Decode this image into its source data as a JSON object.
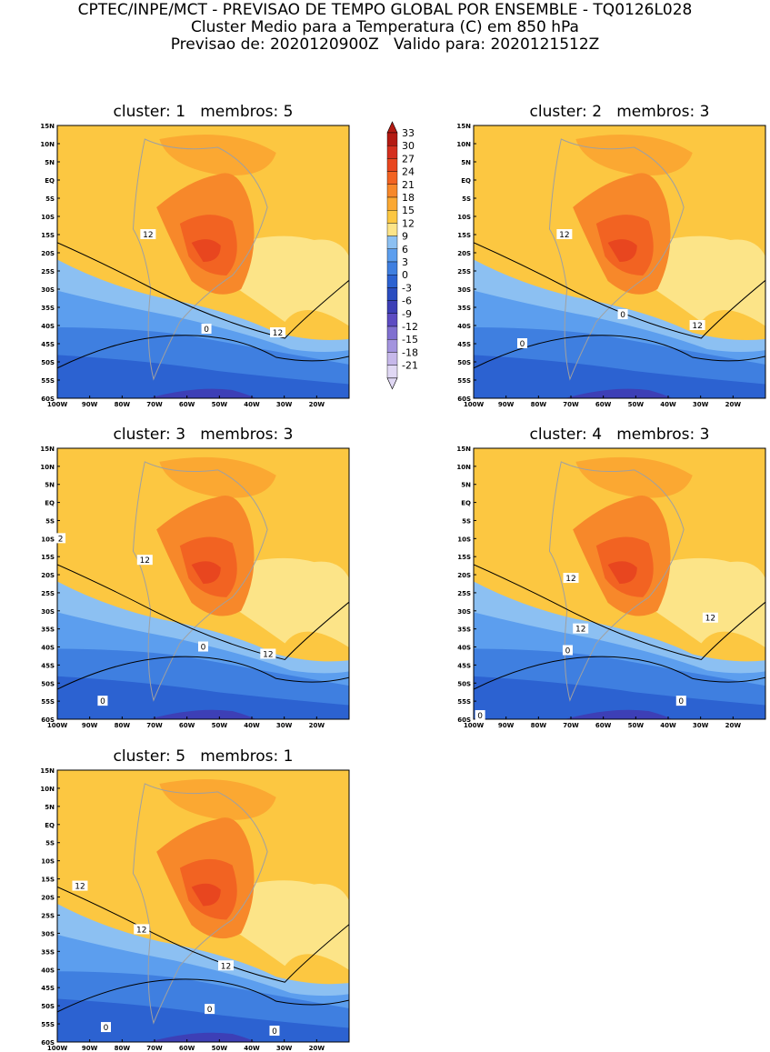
{
  "header": {
    "line1": "CPTEC/INPE/MCT - PREVISAO DE TEMPO GLOBAL POR ENSEMBLE - TQ0126L028",
    "line2": "Cluster Medio para a Temperatura (C) em 850 hPa",
    "line3": "Previsao de: 2020120900Z   Valido para: 2020121512Z"
  },
  "lat_labels": [
    "15N",
    "10N",
    "5N",
    "EQ",
    "5S",
    "10S",
    "15S",
    "20S",
    "25S",
    "30S",
    "35S",
    "40S",
    "45S",
    "50S",
    "55S",
    "60S"
  ],
  "lon_labels": [
    "100W",
    "90W",
    "80W",
    "70W",
    "60W",
    "50W",
    "40W",
    "30W",
    "20W"
  ],
  "colorbar": {
    "levels": [
      "33",
      "30",
      "27",
      "24",
      "21",
      "18",
      "15",
      "12",
      "9",
      "6",
      "3",
      "0",
      "-3",
      "-6",
      "-9",
      "-12",
      "-15",
      "-18",
      "-21"
    ],
    "colors": [
      "#b31a12",
      "#d42f1e",
      "#e8461f",
      "#f26322",
      "#f7882a",
      "#fba832",
      "#fcc741",
      "#fce488",
      "#8cc0f2",
      "#5c9eee",
      "#3f7fe0",
      "#2c62d1",
      "#2a4dc0",
      "#3d3fb6",
      "#5d4cc2",
      "#8070d0",
      "#a394de",
      "#c6b8ea",
      "#e0d8f4"
    ]
  },
  "panels": [
    {
      "cluster_label": "cluster:",
      "cluster": "1",
      "membros_label": "membros:",
      "membros": "5",
      "contours": [
        {
          "text": "12",
          "lon": -72,
          "lat": -15
        },
        {
          "text": "0",
          "lon": -54,
          "lat": -41
        },
        {
          "text": "12",
          "lon": -32,
          "lat": -42
        }
      ]
    },
    {
      "cluster_label": "cluster:",
      "cluster": "2",
      "membros_label": "membros:",
      "membros": "3",
      "contours": [
        {
          "text": "12",
          "lon": -72,
          "lat": -15
        },
        {
          "text": "0",
          "lon": -54,
          "lat": -37
        },
        {
          "text": "12",
          "lon": -31,
          "lat": -40
        },
        {
          "text": "0",
          "lon": -85,
          "lat": -45
        }
      ]
    },
    {
      "cluster_label": "cluster:",
      "cluster": "3",
      "membros_label": "membros:",
      "membros": "3",
      "contours": [
        {
          "text": "2",
          "lon": -99,
          "lat": -10
        },
        {
          "text": "12",
          "lon": -73,
          "lat": -16
        },
        {
          "text": "0",
          "lon": -55,
          "lat": -40
        },
        {
          "text": "12",
          "lon": -35,
          "lat": -42
        },
        {
          "text": "0",
          "lon": -86,
          "lat": -55
        }
      ]
    },
    {
      "cluster_label": "cluster:",
      "cluster": "4",
      "membros_label": "membros:",
      "membros": "3",
      "contours": [
        {
          "text": "12",
          "lon": -70,
          "lat": -21
        },
        {
          "text": "12",
          "lon": -67,
          "lat": -35
        },
        {
          "text": "12",
          "lon": -27,
          "lat": -32
        },
        {
          "text": "0",
          "lon": -71,
          "lat": -41
        },
        {
          "text": "0",
          "lon": -36,
          "lat": -55
        },
        {
          "text": "0",
          "lon": -98,
          "lat": -59
        }
      ]
    },
    {
      "cluster_label": "cluster:",
      "cluster": "5",
      "membros_label": "membros:",
      "membros": "1",
      "contours": [
        {
          "text": "12",
          "lon": -93,
          "lat": -17
        },
        {
          "text": "12",
          "lon": -74,
          "lat": -29
        },
        {
          "text": "12",
          "lon": -48,
          "lat": -39
        },
        {
          "text": "0",
          "lon": -53,
          "lat": -51
        },
        {
          "text": "0",
          "lon": -85,
          "lat": -56
        },
        {
          "text": "0",
          "lon": -33,
          "lat": -57
        }
      ]
    }
  ]
}
